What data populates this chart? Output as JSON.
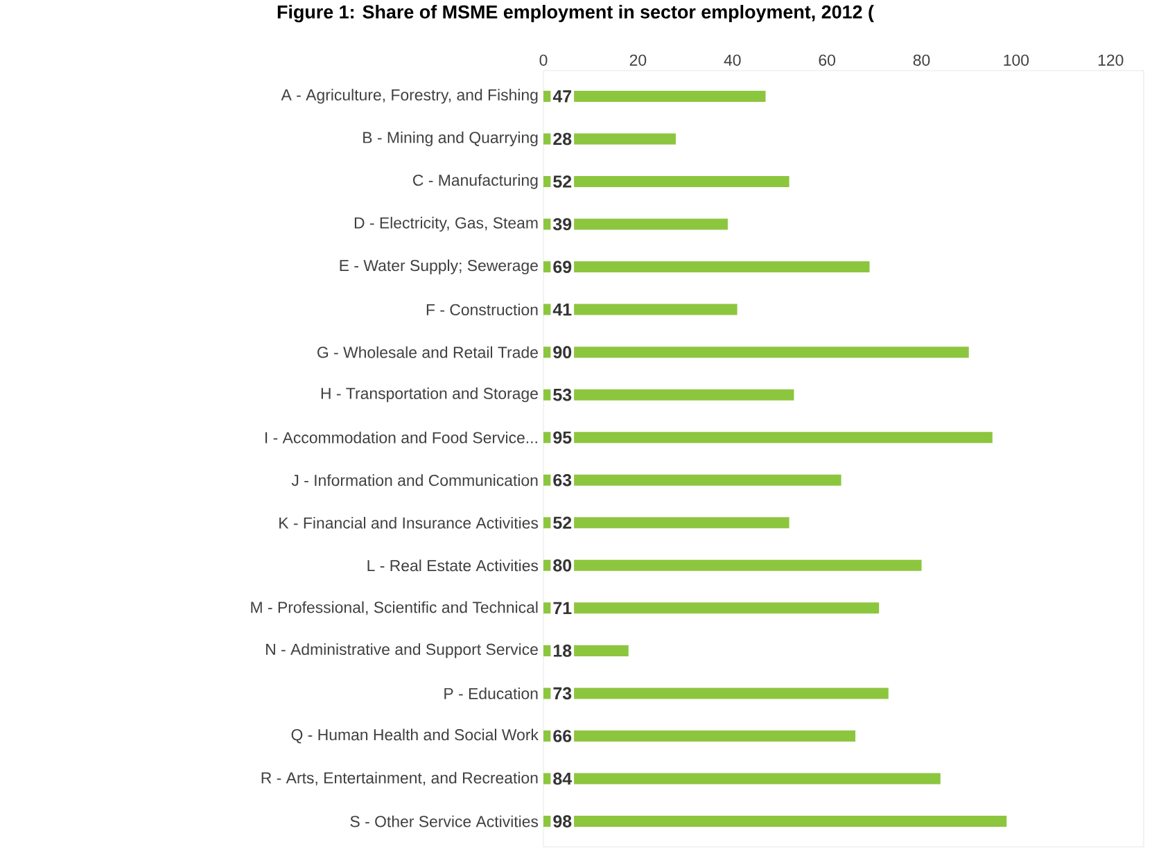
{
  "chart_data": {
    "type": "bar",
    "orientation": "horizontal",
    "title": "Figure 1: Share of MSME employment in sector employment, 2012 (",
    "categories": [
      "A - Agriculture, Forestry, and Fishing",
      "B - Mining and Quarrying",
      "C - Manufacturing",
      "D - Electricity, Gas, Steam",
      "E - Water Supply; Sewerage",
      "F - Construction",
      "G - Wholesale and Retail Trade",
      "H - Transportation and Storage",
      "I - Accommodation and Food Service...",
      "J - Information and Communication",
      "K - Financial and Insurance Activities",
      "L - Real Estate Activities",
      "M - Professional, Scientific and Technical",
      "N - Administrative and Support Service",
      "P - Education",
      "Q - Human Health and Social Work",
      "R - Arts, Entertainment, and Recreation",
      "S - Other Service Activities"
    ],
    "values": [
      47,
      28,
      52,
      39,
      69,
      41,
      90,
      53,
      95,
      63,
      52,
      80,
      71,
      18,
      73,
      66,
      84,
      98
    ],
    "color": "#8cc63e",
    "data_labels": true,
    "grid": false,
    "xlim": [
      0,
      127
    ],
    "xticks": [
      0,
      20,
      40,
      60,
      80,
      100,
      120
    ]
  }
}
